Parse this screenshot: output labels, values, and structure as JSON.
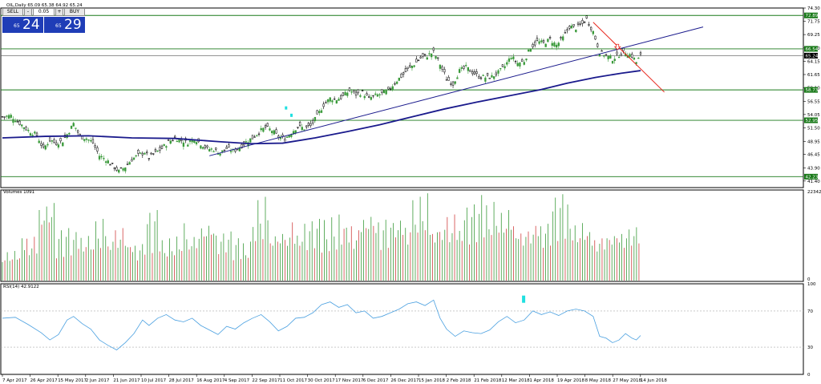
{
  "header": {
    "symbol_line": "OIL,Daily  65.09 65.38 64.92 65.24"
  },
  "trade_panel": {
    "sell_label": "SELL",
    "buy_label": "BUY",
    "lot_value": "0.05",
    "minus_label": "-",
    "plus_label": "+",
    "sell_price_small": "65",
    "sell_price_big": "24",
    "buy_price_small": "65",
    "buy_price_big": "29"
  },
  "colors": {
    "bull": "#3a9a3a",
    "bear": "#d04040",
    "ma": "#1a1a8c",
    "trend": "#1a1a8c",
    "level": "#1a7a1a",
    "arrow": "#e8261c",
    "rsi": "#4aa0e0",
    "marker": "#20e0e0",
    "label_box": "#1a7a1a"
  },
  "chart_data": [
    {
      "type": "line",
      "pane": "price",
      "ylim": [
        40.15,
        74.3
      ],
      "y_ticks": [
        "74.30",
        "71.75",
        "69.25",
        "66.70",
        "64.15",
        "61.65",
        "59.10",
        "56.55",
        "54.05",
        "51.50",
        "48.95",
        "46.45",
        "43.90",
        "41.40"
      ],
      "x_ticks": [
        "7 Apr 2017",
        "26 Apr 2017",
        "15 May 2017",
        "2 Jun 2017",
        "21 Jun 2017",
        "10 Jul 2017",
        "28 Jul 2017",
        "16 Aug 2017",
        "4 Sep 2017",
        "22 Sep 2017",
        "11 Oct 2017",
        "30 Oct 2017",
        "17 Nov 2017",
        "6 Dec 2017",
        "26 Dec 2017",
        "15 Jan 2018",
        "2 Feb 2018",
        "21 Feb 2018",
        "12 Mar 2018",
        "1 Apr 2018",
        "19 Apr 2018",
        "8 May 2018",
        "27 May 2018",
        "14 Jun 2018"
      ],
      "close_series": [
        [
          0,
          53.6
        ],
        [
          4,
          53.8
        ],
        [
          8,
          52.4
        ],
        [
          12,
          51.0
        ],
        [
          16,
          50.1
        ],
        [
          19,
          47.5
        ],
        [
          22,
          49.2
        ],
        [
          25,
          48.6
        ],
        [
          28,
          49.0
        ],
        [
          31,
          50.9
        ],
        [
          33,
          52.3
        ],
        [
          36,
          49.9
        ],
        [
          39,
          49.5
        ],
        [
          42,
          48.7
        ],
        [
          45,
          46.2
        ],
        [
          48,
          45.5
        ],
        [
          51,
          44.4
        ],
        [
          54,
          43.2
        ],
        [
          57,
          44.1
        ],
        [
          60,
          45.5
        ],
        [
          63,
          46.3
        ],
        [
          66,
          46.9
        ],
        [
          68,
          45.8
        ],
        [
          71,
          46.8
        ],
        [
          74,
          47.6
        ],
        [
          77,
          48.8
        ],
        [
          80,
          49.6
        ],
        [
          83,
          49.1
        ],
        [
          86,
          48.7
        ],
        [
          89,
          49.5
        ],
        [
          92,
          48.5
        ],
        [
          95,
          47.5
        ],
        [
          98,
          47.4
        ],
        [
          101,
          46.7
        ],
        [
          104,
          47.6
        ],
        [
          107,
          47.1
        ],
        [
          110,
          47.8
        ],
        [
          113,
          48.8
        ],
        [
          116,
          49.6
        ],
        [
          119,
          50.7
        ],
        [
          122,
          51.6
        ],
        [
          125,
          51.0
        ],
        [
          128,
          49.8
        ],
        [
          131,
          49.4
        ],
        [
          134,
          50.6
        ],
        [
          137,
          51.8
        ],
        [
          140,
          51.4
        ],
        [
          143,
          51.9
        ],
        [
          146,
          53.7
        ],
        [
          149,
          55.9
        ],
        [
          152,
          57.1
        ],
        [
          155,
          56.9
        ],
        [
          158,
          57.5
        ],
        [
          161,
          58.6
        ],
        [
          164,
          57.9
        ],
        [
          167,
          58.2
        ],
        [
          170,
          57.1
        ],
        [
          173,
          57.6
        ],
        [
          176,
          58.0
        ],
        [
          179,
          58.5
        ],
        [
          182,
          60.1
        ],
        [
          185,
          61.3
        ],
        [
          188,
          62.6
        ],
        [
          191,
          63.6
        ],
        [
          194,
          64.8
        ],
        [
          197,
          65.2
        ],
        [
          200,
          65.9
        ],
        [
          203,
          63.6
        ],
        [
          206,
          60.9
        ],
        [
          209,
          59.9
        ],
        [
          212,
          62.3
        ],
        [
          215,
          63.0
        ],
        [
          218,
          62.1
        ],
        [
          221,
          61.3
        ],
        [
          224,
          61.1
        ],
        [
          227,
          61.2
        ],
        [
          230,
          62.0
        ],
        [
          233,
          63.2
        ],
        [
          236,
          65.1
        ],
        [
          239,
          63.8
        ],
        [
          242,
          64.2
        ],
        [
          245,
          66.8
        ],
        [
          248,
          67.9
        ],
        [
          251,
          67.6
        ],
        [
          254,
          68.3
        ],
        [
          257,
          67.2
        ],
        [
          260,
          68.6
        ],
        [
          263,
          70.8
        ],
        [
          266,
          70.5
        ],
        [
          269,
          71.3
        ],
        [
          271,
          72.2
        ],
        [
          274,
          69.8
        ],
        [
          277,
          66.0
        ],
        [
          280,
          65.2
        ],
        [
          283,
          64.6
        ],
        [
          286,
          65.4
        ],
        [
          289,
          65.9
        ],
        [
          292,
          65.2
        ],
        [
          294,
          64.0
        ],
        [
          296,
          65.24
        ]
      ],
      "ma_series": [
        [
          0,
          49.6
        ],
        [
          20,
          49.9
        ],
        [
          40,
          50.0
        ],
        [
          60,
          49.6
        ],
        [
          80,
          49.5
        ],
        [
          100,
          48.9
        ],
        [
          115,
          48.5
        ],
        [
          130,
          48.6
        ],
        [
          145,
          49.6
        ],
        [
          160,
          50.8
        ],
        [
          175,
          52.1
        ],
        [
          190,
          53.6
        ],
        [
          205,
          55.1
        ],
        [
          220,
          56.4
        ],
        [
          235,
          57.6
        ],
        [
          250,
          58.8
        ],
        [
          262,
          60.0
        ],
        [
          275,
          61.1
        ],
        [
          287,
          61.9
        ],
        [
          296,
          62.4
        ]
      ],
      "levels": [
        "72.89",
        "66.54",
        "65.24",
        "58.73",
        "52.95",
        "42.23"
      ],
      "trendlines": [
        {
          "from": [
            96,
            46.2
          ],
          "to": [
            325,
            70.7
          ]
        },
        {
          "from": [
            274,
            71.6
          ],
          "to": [
            307,
            58.3
          ]
        }
      ]
    },
    {
      "type": "bar",
      "pane": "volume",
      "title": "Volumes 1091",
      "ylim": [
        0,
        22342
      ],
      "y_ticks": [
        "22342",
        "0"
      ],
      "values_bull_pct": [
        0.35,
        0.48,
        1.0,
        0.62,
        0.55,
        0.7,
        0.58,
        0.45,
        0.8,
        0.52,
        0.65,
        0.74,
        0.58,
        0.48,
        0.95,
        0.66,
        0.58,
        0.7,
        0.78,
        0.6,
        0.86,
        0.75,
        0.68,
        0.99,
        0.72,
        0.64,
        0.9,
        0.97,
        0.8,
        0.62,
        0.7,
        0.98,
        0.68,
        0.55,
        0.6,
        0.63
      ],
      "values_bear_pct": [
        0.3,
        0.54,
        0.66,
        0.42,
        0.5,
        0.44,
        0.62,
        0.38,
        0.46,
        0.36,
        0.4,
        0.52,
        0.5,
        0.34,
        0.56,
        0.48,
        0.66,
        0.54,
        0.44,
        0.7,
        0.62,
        0.58,
        0.72,
        0.68,
        0.6,
        0.75,
        0.64,
        0.68,
        0.7,
        0.58,
        0.62,
        0.66,
        0.6,
        0.52,
        0.48,
        0.62
      ]
    },
    {
      "type": "line",
      "pane": "rsi",
      "title": "RSI(14) 42.9122",
      "ylim": [
        0,
        100
      ],
      "y_ticks": [
        "100",
        "70",
        "30",
        "0"
      ],
      "levels": [
        70,
        30
      ],
      "values": [
        [
          0,
          62
        ],
        [
          6,
          63
        ],
        [
          12,
          55
        ],
        [
          18,
          46
        ],
        [
          22,
          38
        ],
        [
          26,
          44
        ],
        [
          30,
          60
        ],
        [
          33,
          64
        ],
        [
          37,
          56
        ],
        [
          41,
          50
        ],
        [
          45,
          38
        ],
        [
          49,
          32
        ],
        [
          53,
          27
        ],
        [
          57,
          35
        ],
        [
          61,
          45
        ],
        [
          65,
          60
        ],
        [
          68,
          54
        ],
        [
          72,
          62
        ],
        [
          76,
          66
        ],
        [
          80,
          60
        ],
        [
          84,
          58
        ],
        [
          88,
          62
        ],
        [
          92,
          54
        ],
        [
          96,
          49
        ],
        [
          100,
          44
        ],
        [
          104,
          53
        ],
        [
          108,
          50
        ],
        [
          112,
          57
        ],
        [
          116,
          62
        ],
        [
          120,
          66
        ],
        [
          124,
          58
        ],
        [
          128,
          48
        ],
        [
          132,
          53
        ],
        [
          136,
          62
        ],
        [
          140,
          63
        ],
        [
          144,
          68
        ],
        [
          148,
          77
        ],
        [
          152,
          80
        ],
        [
          156,
          74
        ],
        [
          160,
          77
        ],
        [
          164,
          68
        ],
        [
          168,
          70
        ],
        [
          172,
          62
        ],
        [
          176,
          64
        ],
        [
          180,
          68
        ],
        [
          184,
          72
        ],
        [
          188,
          78
        ],
        [
          192,
          80
        ],
        [
          196,
          76
        ],
        [
          200,
          82
        ],
        [
          203,
          62
        ],
        [
          206,
          50
        ],
        [
          210,
          42
        ],
        [
          214,
          48
        ],
        [
          218,
          46
        ],
        [
          222,
          45
        ],
        [
          226,
          49
        ],
        [
          230,
          58
        ],
        [
          234,
          64
        ],
        [
          238,
          57
        ],
        [
          242,
          60
        ],
        [
          246,
          70
        ],
        [
          250,
          66
        ],
        [
          254,
          69
        ],
        [
          258,
          65
        ],
        [
          262,
          70
        ],
        [
          266,
          72
        ],
        [
          270,
          70
        ],
        [
          274,
          64
        ],
        [
          277,
          42
        ],
        [
          280,
          40
        ],
        [
          283,
          35
        ],
        [
          286,
          38
        ],
        [
          289,
          45
        ],
        [
          292,
          40
        ],
        [
          294,
          38
        ],
        [
          296,
          42.9
        ]
      ]
    }
  ]
}
